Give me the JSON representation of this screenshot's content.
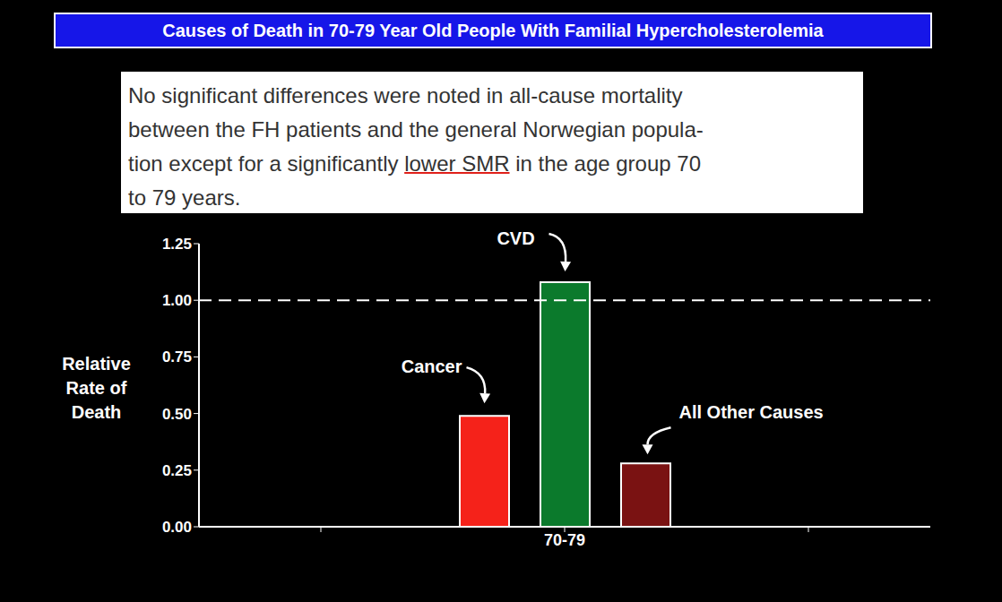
{
  "header": {
    "title": "Causes of Death in 70-79 Year Old People With Familial Hypercholesterolemia"
  },
  "quote": {
    "lines": [
      "No significant differences were noted in all-cause mortality",
      "between the FH patients and the general Norwegian popula-",
      "tion except for a significantly lower SMR in the age group 70",
      "to 79 years."
    ],
    "underlined": "lower SMR"
  },
  "chart_data": {
    "type": "bar",
    "ylabel": "Relative Rate of Death",
    "categories": [
      null,
      "70-79",
      null
    ],
    "series": [
      {
        "name": "Cancer",
        "color": "#f5221a",
        "values": [
          null,
          0.49,
          null
        ]
      },
      {
        "name": "CVD",
        "color": "#0b7a2c",
        "values": [
          null,
          1.08,
          null
        ]
      },
      {
        "name": "All Other Causes",
        "color": "#7a1212",
        "values": [
          null,
          0.28,
          null
        ]
      }
    ],
    "ylim": [
      0,
      1.25
    ],
    "yticks": [
      {
        "value": 0,
        "label": "0.00"
      },
      {
        "value": 0.25,
        "label": "0.25"
      },
      {
        "value": 0.5,
        "label": "0.50"
      },
      {
        "value": 0.75,
        "label": "0.75"
      },
      {
        "value": 1,
        "label": "1.00"
      },
      {
        "value": 1.25,
        "label": "1.25"
      }
    ],
    "reference_lines": [
      1
    ],
    "grid": false
  }
}
